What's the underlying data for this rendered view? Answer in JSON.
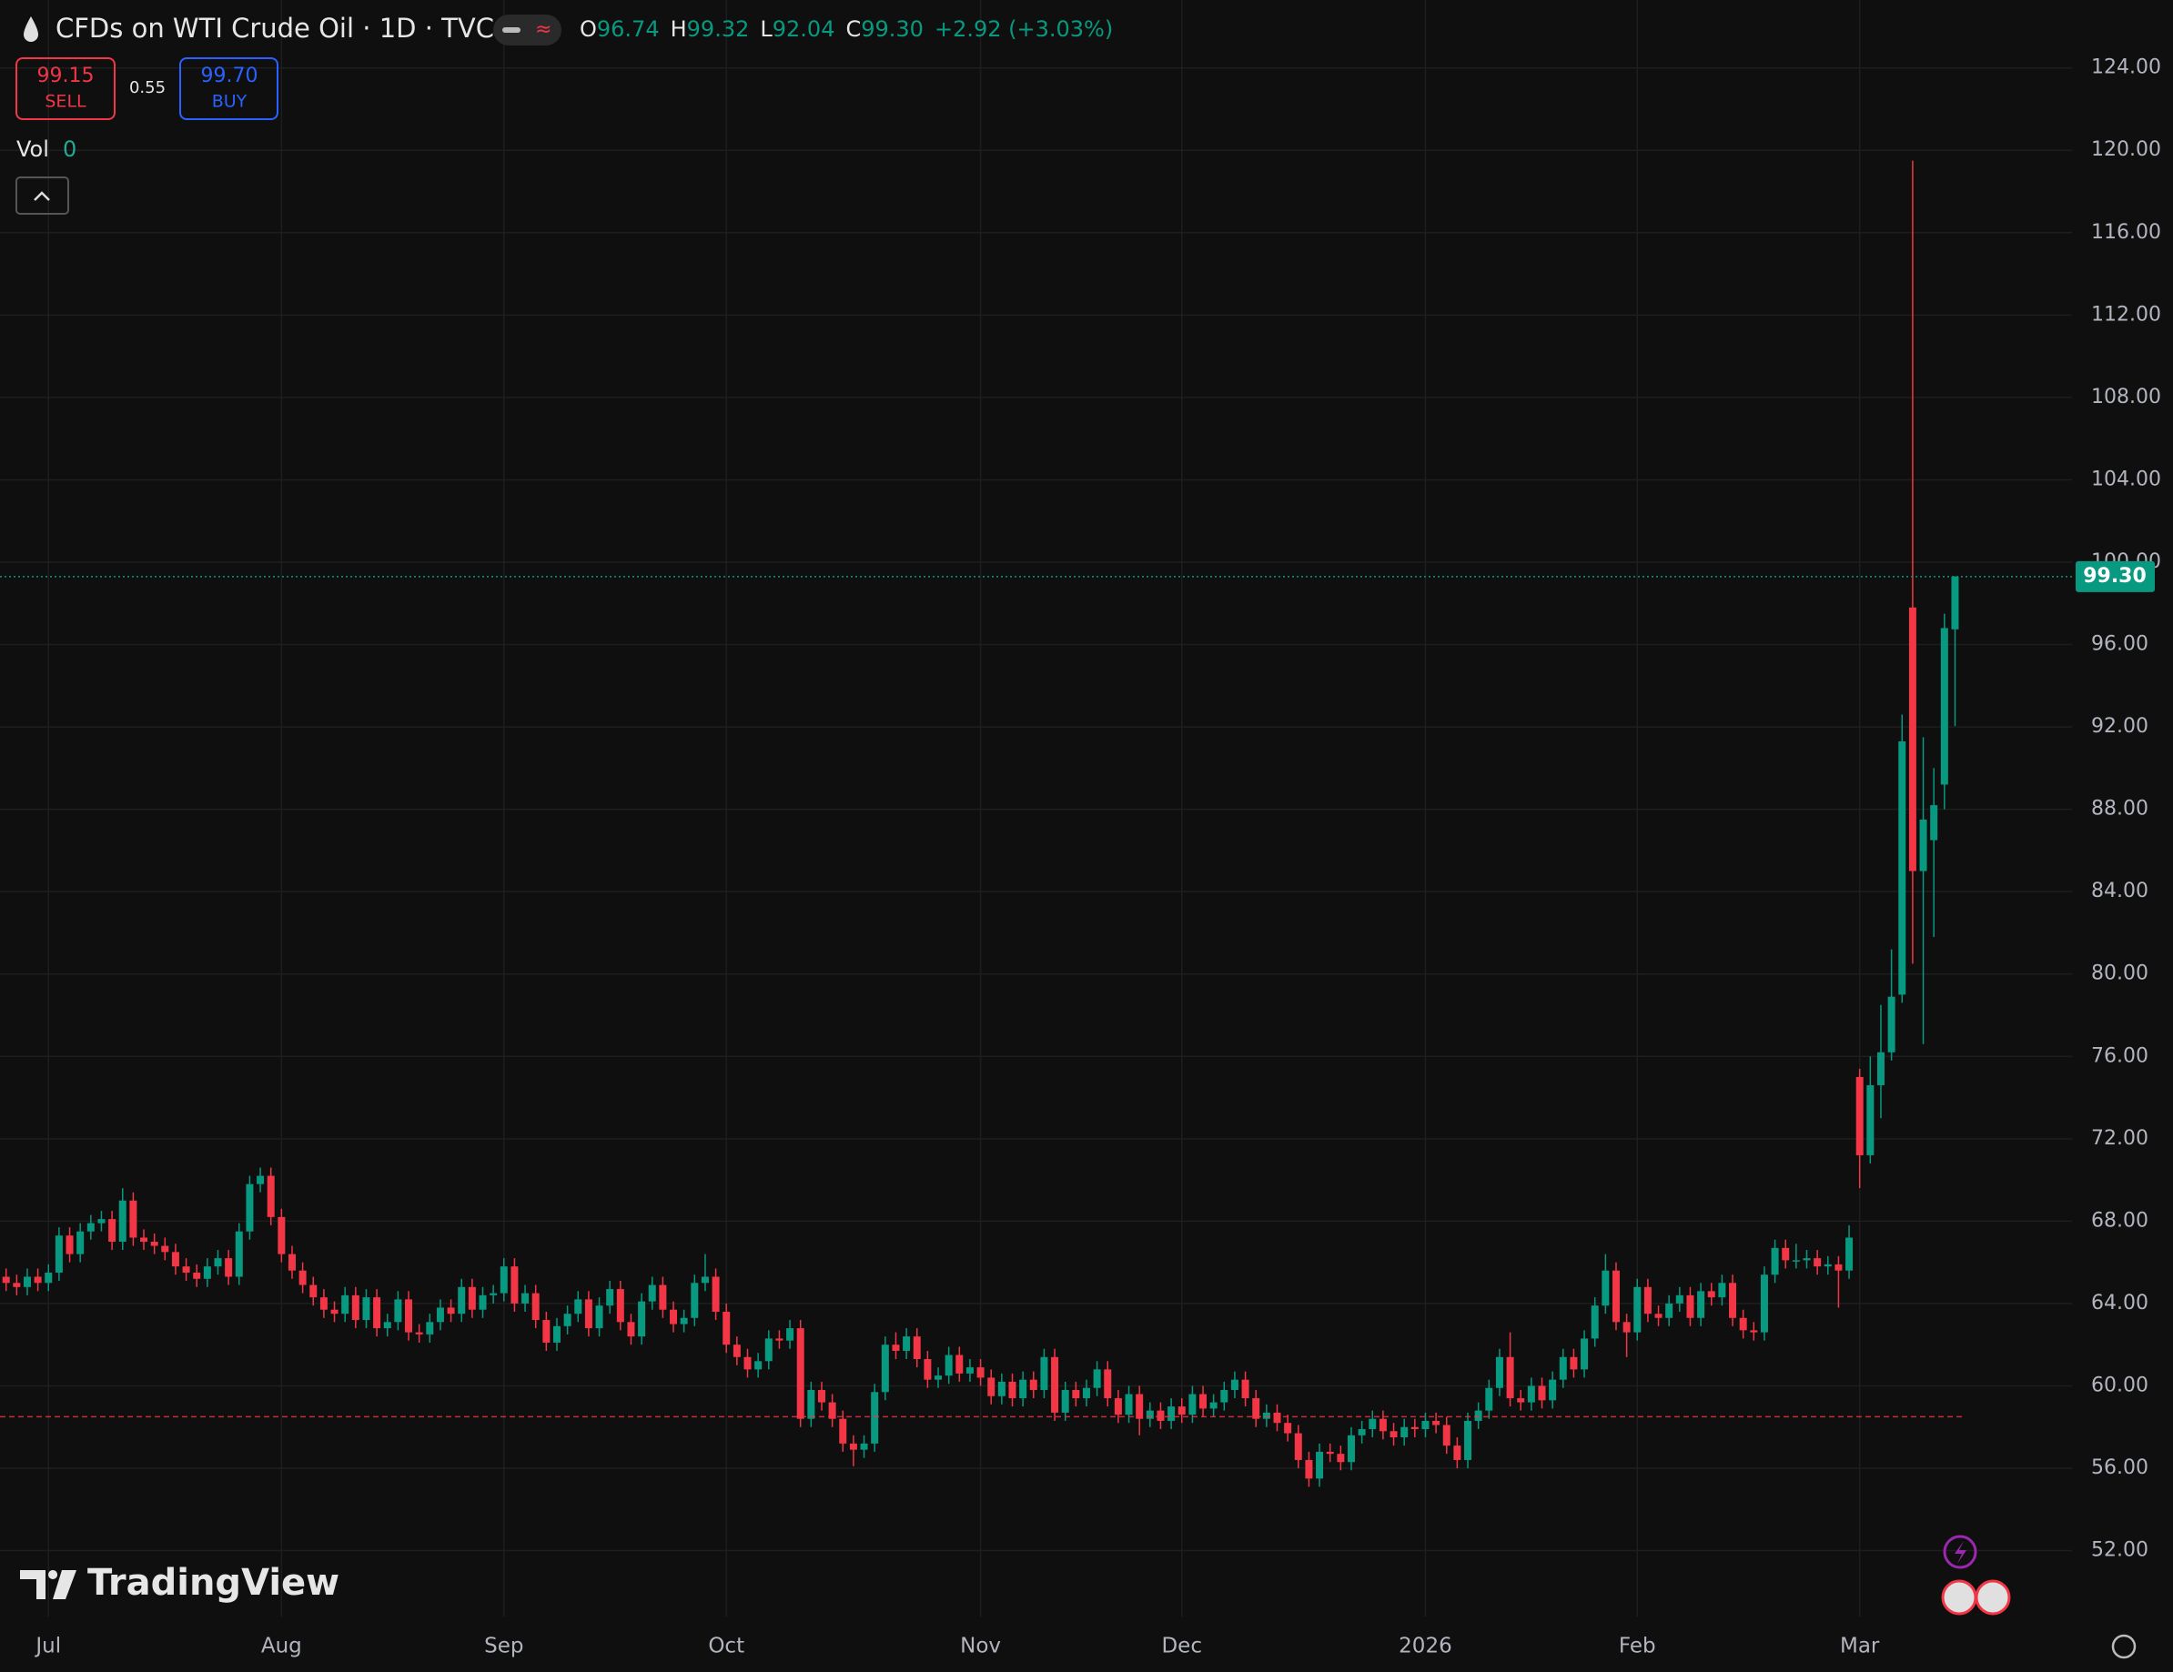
{
  "header": {
    "title": "CFDs on WTI Crude Oil · 1D · TVC",
    "legend_keys": [
      "O",
      "H",
      "L",
      "C"
    ],
    "legend_values": [
      "96.74",
      "99.32",
      "92.04",
      "99.30"
    ],
    "change": "+2.92 (+3.03%)"
  },
  "trade": {
    "sell_price": "99.15",
    "sell": "SELL",
    "spread": "0.55",
    "buy_price": "99.70",
    "buy": "BUY"
  },
  "volume": {
    "label": "Vol",
    "value": "0"
  },
  "logo": "TradingView",
  "chart_data": {
    "type": "candlestick",
    "up_color": "#089981",
    "down_color": "#f23645",
    "grid": true,
    "ylim": [
      48.8,
      127.3
    ],
    "yticks": [
      {
        "value": 52,
        "label": "52.00"
      },
      {
        "value": 56,
        "label": "56.00"
      },
      {
        "value": 60,
        "label": "60.00"
      },
      {
        "value": 64,
        "label": "64.00"
      },
      {
        "value": 68,
        "label": "68.00"
      },
      {
        "value": 72,
        "label": "72.00"
      },
      {
        "value": 76,
        "label": "76.00"
      },
      {
        "value": 80,
        "label": "80.00"
      },
      {
        "value": 84,
        "label": "84.00"
      },
      {
        "value": 88,
        "label": "88.00"
      },
      {
        "value": 92,
        "label": "92.00"
      },
      {
        "value": 96,
        "label": "96.00"
      },
      {
        "value": 100,
        "label": "100.00"
      },
      {
        "value": 104,
        "label": "104.00"
      },
      {
        "value": 108,
        "label": "108.00"
      },
      {
        "value": 112,
        "label": "112.00"
      },
      {
        "value": 116,
        "label": "116.00"
      },
      {
        "value": 120,
        "label": "120.00"
      },
      {
        "value": 124,
        "label": "124.00"
      }
    ],
    "price_line": {
      "value": 99.3,
      "label": "99.30"
    },
    "reference_line": 58.5,
    "categories": [
      null,
      null,
      null,
      null,
      "Jul",
      null,
      null,
      null,
      null,
      null,
      null,
      null,
      null,
      null,
      null,
      null,
      null,
      null,
      null,
      null,
      null,
      null,
      null,
      null,
      null,
      null,
      "Aug",
      null,
      null,
      null,
      null,
      null,
      null,
      null,
      null,
      null,
      null,
      null,
      null,
      null,
      null,
      null,
      null,
      null,
      null,
      null,
      null,
      "Sep",
      null,
      null,
      null,
      null,
      null,
      null,
      null,
      null,
      null,
      null,
      null,
      null,
      null,
      null,
      null,
      null,
      null,
      null,
      null,
      null,
      "Oct",
      null,
      null,
      null,
      null,
      null,
      null,
      null,
      null,
      null,
      null,
      null,
      null,
      null,
      null,
      null,
      null,
      null,
      null,
      null,
      null,
      null,
      null,
      null,
      "Nov",
      null,
      null,
      null,
      null,
      null,
      null,
      null,
      null,
      null,
      null,
      null,
      null,
      null,
      null,
      null,
      null,
      null,
      null,
      "Dec",
      null,
      null,
      null,
      null,
      null,
      null,
      null,
      null,
      null,
      null,
      null,
      null,
      null,
      null,
      null,
      null,
      null,
      null,
      null,
      null,
      null,
      null,
      "2026",
      null,
      null,
      null,
      null,
      null,
      null,
      null,
      null,
      null,
      null,
      null,
      null,
      null,
      null,
      null,
      null,
      null,
      null,
      null,
      "Feb",
      null,
      null,
      null,
      null,
      null,
      null,
      null,
      null,
      null,
      null,
      null,
      null,
      null,
      null,
      null,
      null,
      null,
      null,
      null,
      null,
      "Mar",
      null,
      null,
      null,
      null,
      null,
      null,
      null,
      null,
      null
    ],
    "ohlc": [
      [
        65.3,
        65.7,
        64.6,
        65.0
      ],
      [
        65.0,
        65.4,
        64.4,
        64.8
      ],
      [
        64.8,
        65.7,
        64.4,
        65.3
      ],
      [
        65.3,
        65.7,
        64.6,
        65.0
      ],
      [
        65.0,
        65.9,
        64.6,
        65.5
      ],
      [
        65.5,
        67.7,
        65.1,
        67.3
      ],
      [
        67.3,
        67.7,
        66.0,
        66.4
      ],
      [
        66.4,
        67.9,
        66.0,
        67.5
      ],
      [
        67.5,
        68.3,
        67.1,
        67.9
      ],
      [
        67.9,
        68.5,
        67.5,
        68.1
      ],
      [
        68.1,
        68.5,
        66.6,
        67.0
      ],
      [
        67.0,
        69.6,
        66.6,
        69.0
      ],
      [
        69.0,
        69.4,
        66.8,
        67.2
      ],
      [
        67.2,
        67.6,
        66.6,
        67.0
      ],
      [
        67.0,
        67.4,
        66.4,
        66.8
      ],
      [
        66.8,
        67.2,
        66.1,
        66.5
      ],
      [
        66.5,
        66.9,
        65.4,
        65.8
      ],
      [
        65.8,
        66.2,
        65.1,
        65.5
      ],
      [
        65.5,
        65.9,
        64.8,
        65.2
      ],
      [
        65.2,
        66.2,
        64.8,
        65.8
      ],
      [
        65.8,
        66.6,
        65.4,
        66.2
      ],
      [
        66.2,
        66.6,
        64.9,
        65.3
      ],
      [
        65.3,
        67.9,
        64.9,
        67.5
      ],
      [
        67.5,
        70.2,
        67.1,
        69.8
      ],
      [
        69.8,
        70.6,
        69.4,
        70.2
      ],
      [
        70.2,
        70.6,
        67.8,
        68.2
      ],
      [
        68.2,
        68.6,
        66.0,
        66.4
      ],
      [
        66.4,
        66.8,
        65.2,
        65.6
      ],
      [
        65.6,
        66.0,
        64.5,
        64.9
      ],
      [
        64.9,
        65.3,
        63.9,
        64.3
      ],
      [
        64.3,
        64.7,
        63.3,
        63.7
      ],
      [
        63.7,
        64.1,
        63.1,
        63.5
      ],
      [
        63.5,
        64.8,
        63.1,
        64.4
      ],
      [
        64.4,
        64.8,
        62.8,
        63.2
      ],
      [
        63.2,
        64.7,
        62.8,
        64.3
      ],
      [
        64.3,
        64.7,
        62.4,
        62.8
      ],
      [
        62.8,
        63.5,
        62.4,
        63.1
      ],
      [
        63.1,
        64.6,
        62.7,
        64.2
      ],
      [
        64.2,
        64.6,
        62.2,
        62.6
      ],
      [
        62.6,
        63.0,
        62.1,
        62.5
      ],
      [
        62.5,
        63.5,
        62.1,
        63.1
      ],
      [
        63.1,
        64.2,
        62.7,
        63.8
      ],
      [
        63.8,
        64.2,
        63.1,
        63.5
      ],
      [
        63.5,
        65.2,
        63.1,
        64.8
      ],
      [
        64.8,
        65.2,
        63.3,
        63.7
      ],
      [
        63.7,
        64.8,
        63.3,
        64.4
      ],
      [
        64.4,
        64.9,
        64.0,
        64.5
      ],
      [
        64.5,
        66.2,
        64.1,
        65.8
      ],
      [
        65.8,
        66.2,
        63.6,
        64.0
      ],
      [
        64.0,
        64.9,
        63.6,
        64.5
      ],
      [
        64.5,
        64.9,
        62.8,
        63.2
      ],
      [
        63.2,
        63.6,
        61.7,
        62.1
      ],
      [
        62.1,
        63.3,
        61.7,
        62.9
      ],
      [
        62.9,
        63.9,
        62.5,
        63.5
      ],
      [
        63.5,
        64.6,
        63.1,
        64.2
      ],
      [
        64.2,
        64.6,
        62.4,
        62.8
      ],
      [
        62.8,
        64.3,
        62.4,
        63.9
      ],
      [
        63.9,
        65.1,
        63.5,
        64.7
      ],
      [
        64.7,
        65.1,
        62.7,
        63.1
      ],
      [
        63.1,
        63.5,
        62.0,
        62.4
      ],
      [
        62.4,
        64.5,
        62.0,
        64.1
      ],
      [
        64.1,
        65.3,
        63.7,
        64.9
      ],
      [
        64.9,
        65.3,
        63.3,
        63.7
      ],
      [
        63.7,
        64.1,
        62.6,
        63.0
      ],
      [
        63.0,
        63.7,
        62.6,
        63.3
      ],
      [
        63.3,
        65.4,
        62.9,
        65.0
      ],
      [
        65.0,
        66.4,
        64.6,
        65.3
      ],
      [
        65.3,
        65.7,
        63.2,
        63.6
      ],
      [
        63.6,
        64.0,
        61.6,
        62.0
      ],
      [
        62.0,
        62.4,
        61.0,
        61.4
      ],
      [
        61.4,
        61.8,
        60.4,
        60.8
      ],
      [
        60.8,
        61.6,
        60.4,
        61.2
      ],
      [
        61.2,
        62.7,
        60.8,
        62.3
      ],
      [
        62.3,
        62.7,
        61.8,
        62.2
      ],
      [
        62.2,
        63.2,
        61.8,
        62.8
      ],
      [
        62.8,
        63.2,
        58.0,
        58.4
      ],
      [
        58.4,
        60.2,
        58.0,
        59.8
      ],
      [
        59.8,
        60.2,
        58.8,
        59.2
      ],
      [
        59.2,
        59.6,
        58.0,
        58.4
      ],
      [
        58.4,
        58.8,
        56.8,
        57.2
      ],
      [
        57.2,
        57.6,
        56.1,
        56.9
      ],
      [
        56.9,
        57.6,
        56.5,
        57.2
      ],
      [
        57.2,
        60.1,
        56.8,
        59.7
      ],
      [
        59.7,
        62.4,
        59.3,
        62.0
      ],
      [
        62.0,
        62.6,
        61.3,
        61.7
      ],
      [
        61.7,
        62.8,
        61.3,
        62.4
      ],
      [
        62.4,
        62.8,
        60.9,
        61.3
      ],
      [
        61.3,
        61.7,
        59.9,
        60.3
      ],
      [
        60.3,
        60.9,
        59.9,
        60.5
      ],
      [
        60.5,
        61.9,
        60.1,
        61.5
      ],
      [
        61.5,
        61.9,
        60.2,
        60.6
      ],
      [
        60.6,
        61.3,
        60.2,
        60.9
      ],
      [
        60.9,
        61.3,
        60.0,
        60.4
      ],
      [
        60.4,
        60.8,
        59.1,
        59.5
      ],
      [
        59.5,
        60.6,
        59.1,
        60.2
      ],
      [
        60.2,
        60.6,
        59.0,
        59.4
      ],
      [
        59.4,
        60.7,
        59.0,
        60.3
      ],
      [
        60.3,
        60.7,
        59.4,
        59.8
      ],
      [
        59.8,
        61.8,
        59.4,
        61.4
      ],
      [
        61.4,
        61.8,
        58.3,
        58.7
      ],
      [
        58.7,
        60.2,
        58.3,
        59.8
      ],
      [
        59.8,
        60.2,
        59.0,
        59.4
      ],
      [
        59.4,
        60.3,
        59.0,
        59.9
      ],
      [
        59.9,
        61.2,
        59.5,
        60.8
      ],
      [
        60.8,
        61.2,
        59.0,
        59.4
      ],
      [
        59.4,
        59.8,
        58.2,
        58.6
      ],
      [
        58.6,
        60.0,
        58.2,
        59.6
      ],
      [
        59.6,
        60.0,
        57.6,
        58.4
      ],
      [
        58.4,
        59.2,
        58.0,
        58.8
      ],
      [
        58.8,
        59.2,
        57.9,
        58.3
      ],
      [
        58.3,
        59.4,
        57.9,
        59.0
      ],
      [
        59.0,
        59.4,
        58.2,
        58.6
      ],
      [
        58.6,
        60.0,
        58.2,
        59.6
      ],
      [
        59.6,
        60.0,
        58.5,
        58.9
      ],
      [
        58.9,
        59.6,
        58.5,
        59.2
      ],
      [
        59.2,
        60.2,
        58.8,
        59.8
      ],
      [
        59.8,
        60.7,
        59.4,
        60.3
      ],
      [
        60.3,
        60.7,
        59.0,
        59.4
      ],
      [
        59.4,
        59.8,
        58.0,
        58.4
      ],
      [
        58.4,
        59.1,
        58.0,
        58.7
      ],
      [
        58.7,
        59.1,
        57.8,
        58.2
      ],
      [
        58.2,
        58.6,
        57.3,
        57.7
      ],
      [
        57.7,
        58.1,
        56.0,
        56.4
      ],
      [
        56.4,
        56.8,
        55.1,
        55.5
      ],
      [
        55.5,
        57.2,
        55.1,
        56.8
      ],
      [
        56.8,
        57.2,
        56.3,
        56.7
      ],
      [
        56.7,
        57.1,
        55.9,
        56.3
      ],
      [
        56.3,
        58.0,
        55.9,
        57.6
      ],
      [
        57.6,
        58.3,
        57.2,
        57.9
      ],
      [
        57.9,
        58.8,
        57.5,
        58.4
      ],
      [
        58.4,
        58.8,
        57.4,
        57.8
      ],
      [
        57.8,
        58.2,
        57.1,
        57.5
      ],
      [
        57.5,
        58.4,
        57.1,
        58.0
      ],
      [
        58.0,
        58.4,
        57.5,
        57.9
      ],
      [
        57.9,
        58.7,
        57.5,
        58.3
      ],
      [
        58.3,
        58.7,
        57.7,
        58.1
      ],
      [
        58.1,
        58.5,
        56.7,
        57.1
      ],
      [
        57.1,
        57.5,
        56.0,
        56.4
      ],
      [
        56.4,
        58.7,
        56.0,
        58.3
      ],
      [
        58.3,
        59.2,
        57.9,
        58.8
      ],
      [
        58.8,
        60.3,
        58.4,
        59.9
      ],
      [
        59.9,
        61.8,
        59.5,
        61.4
      ],
      [
        61.4,
        62.6,
        59.0,
        59.4
      ],
      [
        59.4,
        59.8,
        58.8,
        59.2
      ],
      [
        59.2,
        60.4,
        58.8,
        60.0
      ],
      [
        60.0,
        60.4,
        58.9,
        59.3
      ],
      [
        59.3,
        60.7,
        58.9,
        60.3
      ],
      [
        60.3,
        61.8,
        59.9,
        61.4
      ],
      [
        61.4,
        61.8,
        60.4,
        60.8
      ],
      [
        60.8,
        62.7,
        60.4,
        62.3
      ],
      [
        62.3,
        64.3,
        61.9,
        63.9
      ],
      [
        63.9,
        66.4,
        63.5,
        65.6
      ],
      [
        65.6,
        66.0,
        62.7,
        63.1
      ],
      [
        63.1,
        63.5,
        61.4,
        62.6
      ],
      [
        62.6,
        65.2,
        62.2,
        64.8
      ],
      [
        64.8,
        65.2,
        63.1,
        63.5
      ],
      [
        63.5,
        63.9,
        62.9,
        63.3
      ],
      [
        63.3,
        64.4,
        62.9,
        64.0
      ],
      [
        64.0,
        64.8,
        63.6,
        64.4
      ],
      [
        64.4,
        64.8,
        62.9,
        63.3
      ],
      [
        63.3,
        65.0,
        62.9,
        64.6
      ],
      [
        64.6,
        65.0,
        63.9,
        64.3
      ],
      [
        64.3,
        65.4,
        63.9,
        65.0
      ],
      [
        65.0,
        65.4,
        62.9,
        63.3
      ],
      [
        63.3,
        63.7,
        62.3,
        62.7
      ],
      [
        62.7,
        63.1,
        62.2,
        62.6
      ],
      [
        62.6,
        65.8,
        62.2,
        65.4
      ],
      [
        65.4,
        67.1,
        65.0,
        66.7
      ],
      [
        66.7,
        67.1,
        65.7,
        66.1
      ],
      [
        66.1,
        66.9,
        65.7,
        66.1
      ],
      [
        66.1,
        66.6,
        65.7,
        66.2
      ],
      [
        66.2,
        66.6,
        65.4,
        65.8
      ],
      [
        65.8,
        66.3,
        65.4,
        65.9
      ],
      [
        65.9,
        66.3,
        63.8,
        65.6
      ],
      [
        65.6,
        67.8,
        65.2,
        67.2
      ],
      [
        75.0,
        75.4,
        69.6,
        71.2
      ],
      [
        71.2,
        76.0,
        70.8,
        74.6
      ],
      [
        74.6,
        78.5,
        73.0,
        76.2
      ],
      [
        76.2,
        81.2,
        75.8,
        78.9
      ],
      [
        79.0,
        92.6,
        78.6,
        91.3
      ],
      [
        97.8,
        119.5,
        80.5,
        85.0
      ],
      [
        85.0,
        91.5,
        76.6,
        87.5
      ],
      [
        86.5,
        90.0,
        81.8,
        88.2
      ],
      [
        89.2,
        97.5,
        88.0,
        96.8
      ],
      [
        96.74,
        99.32,
        92.04,
        99.3
      ]
    ]
  }
}
